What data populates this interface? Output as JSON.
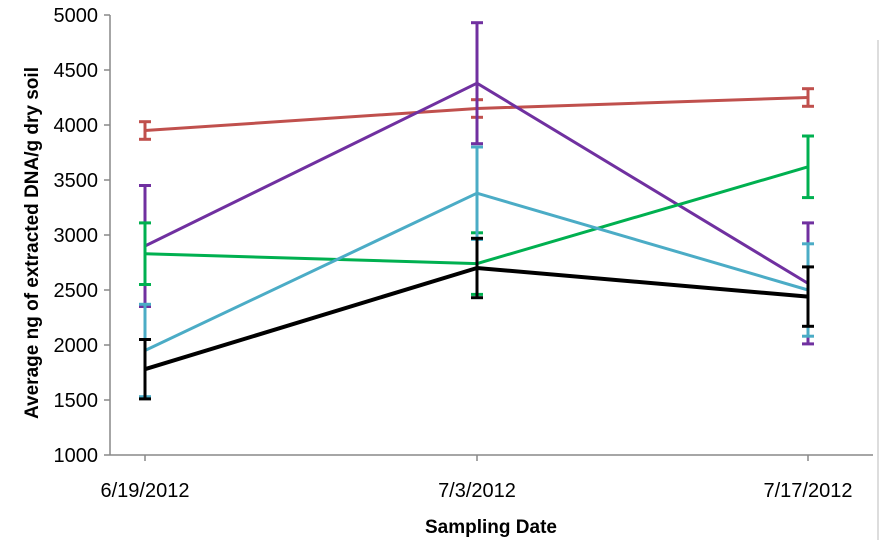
{
  "chart_data": {
    "type": "line",
    "title": "",
    "xlabel": "Sampling Date",
    "ylabel": "Average ng of extracted DNA/g dry soil",
    "categories": [
      "6/19/2012",
      "7/3/2012",
      "7/17/2012"
    ],
    "ylim": [
      1000,
      5000
    ],
    "yticks": [
      1000,
      1500,
      2000,
      2500,
      3000,
      3500,
      4000,
      4500,
      5000
    ],
    "grid": false,
    "legend": "none",
    "series": [
      {
        "color": "#c0504d",
        "stroke": 3,
        "values": [
          3950,
          4150,
          4250
        ],
        "err": [
          80,
          80,
          80
        ]
      },
      {
        "color": "#7030a0",
        "stroke": 3,
        "values": [
          2900,
          4380,
          2560
        ],
        "err": [
          550,
          550,
          550
        ]
      },
      {
        "color": "#00b050",
        "stroke": 3,
        "values": [
          2830,
          2740,
          3620
        ],
        "err": [
          280,
          280,
          280
        ]
      },
      {
        "color": "#4bacc6",
        "stroke": 3,
        "values": [
          1950,
          3380,
          2500
        ],
        "err": [
          420,
          420,
          420
        ]
      },
      {
        "color": "#000000",
        "stroke": 4,
        "values": [
          1780,
          2700,
          2440
        ],
        "err": [
          270,
          270,
          270
        ]
      }
    ]
  }
}
